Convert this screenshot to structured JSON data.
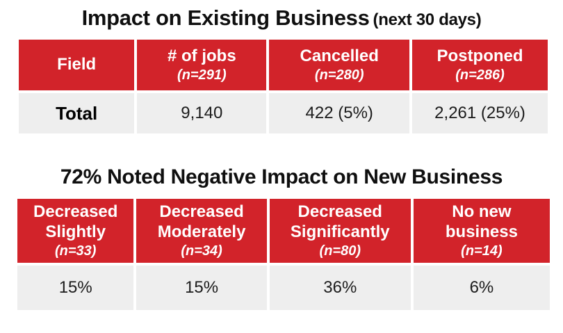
{
  "colors": {
    "header_red": "#d2232a",
    "row_gray": "#eeeeee",
    "title_black": "#0f0f0f",
    "header_text_white": "#ffffff"
  },
  "section_existing": {
    "title_main": "Impact on Existing Business",
    "title_suffix": "(next 30 days)",
    "table": {
      "columns": [
        {
          "label": "Field",
          "sub": ""
        },
        {
          "label": "# of jobs",
          "sub": "(n=291)"
        },
        {
          "label": "Cancelled",
          "sub": "(n=280)"
        },
        {
          "label": "Postponed",
          "sub": "(n=286)"
        }
      ],
      "row": [
        "Total",
        "9,140",
        "422 (5%)",
        "2,261 (25%)"
      ]
    }
  },
  "section_new": {
    "title": "72% Noted Negative Impact on New Business",
    "table": {
      "columns": [
        {
          "label": "Decreased\nSlightly",
          "sub": "(n=33)"
        },
        {
          "label": "Decreased\nModerately",
          "sub": "(n=34)"
        },
        {
          "label": "Decreased\nSignificantly",
          "sub": "(n=80)"
        },
        {
          "label": "No new\nbusiness",
          "sub": "(n=14)"
        }
      ],
      "row": [
        "15%",
        "15%",
        "36%",
        "6%"
      ]
    }
  },
  "chart_data": [
    {
      "type": "table",
      "title": "Impact on Existing Business (next 30 days)",
      "columns": [
        "Field",
        "# of jobs (n=291)",
        "Cancelled (n=280)",
        "Postponed (n=286)"
      ],
      "rows": [
        [
          "Total",
          "9,140",
          "422 (5%)",
          "2,261 (25%)"
        ]
      ],
      "header_color": "#d2232a",
      "row_color": "#eeeeee"
    },
    {
      "type": "table",
      "title": "72% Noted Negative Impact on New Business",
      "columns": [
        "Decreased Slightly (n=33)",
        "Decreased Moderately (n=34)",
        "Decreased Significantly (n=80)",
        "No new business (n=14)"
      ],
      "rows": [
        [
          "15%",
          "15%",
          "36%",
          "6%"
        ]
      ],
      "header_color": "#d2232a",
      "row_color": "#eeeeee"
    }
  ]
}
